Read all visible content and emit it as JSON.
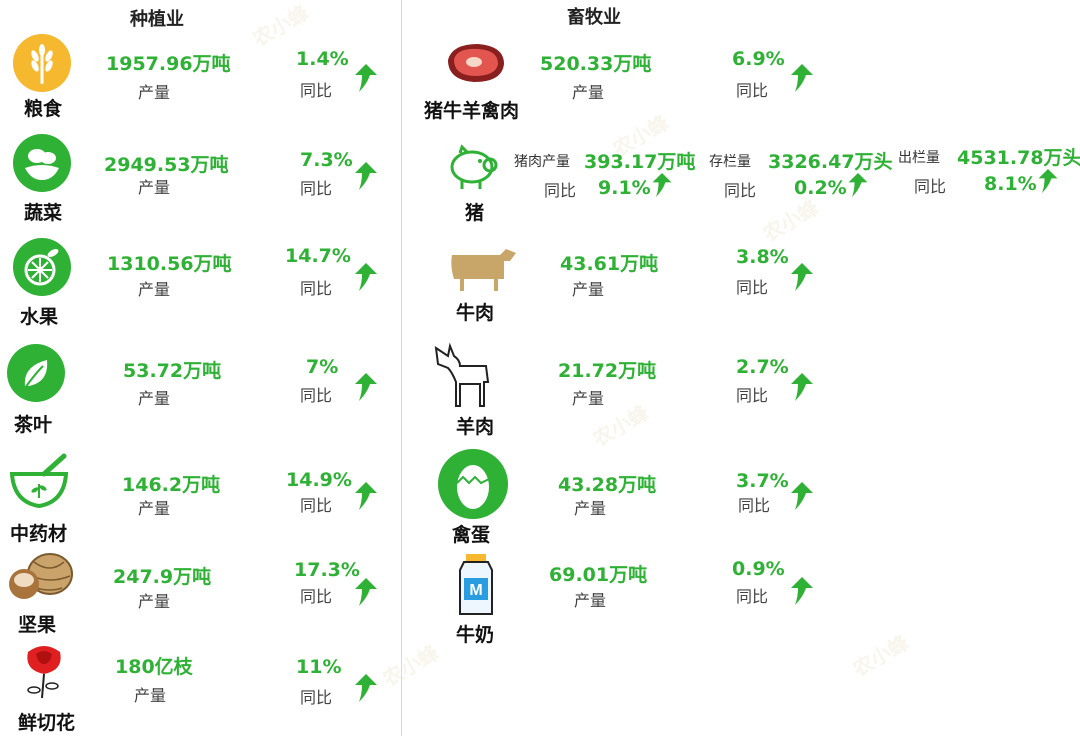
{
  "headers": {
    "planting": "种植业",
    "livestock": "畜牧业"
  },
  "common": {
    "yield_label": "产量",
    "yoy_label": "同比"
  },
  "watermark": "农小蜂",
  "planting": [
    {
      "name": "粮食",
      "value": "1957.96万吨",
      "pct": "1.4%",
      "icon": "wheat-icon"
    },
    {
      "name": "蔬菜",
      "value": "2949.53万吨",
      "pct": "7.3%",
      "icon": "vegetable-icon"
    },
    {
      "name": "水果",
      "value": "1310.56万吨",
      "pct": "14.7%",
      "icon": "citrus-icon"
    },
    {
      "name": "茶叶",
      "value": "53.72万吨",
      "pct": "7%",
      "icon": "tea-leaf-icon"
    },
    {
      "name": "中药材",
      "value": "146.2万吨",
      "pct": "14.9%",
      "icon": "mortar-icon"
    },
    {
      "name": "坚果",
      "value": "247.9万吨",
      "pct": "17.3%",
      "icon": "nut-icon"
    },
    {
      "name": "鲜切花",
      "value": "180亿枝",
      "pct": "11%",
      "icon": "rose-icon"
    }
  ],
  "livestock": [
    {
      "name": "猪牛羊禽肉",
      "value": "520.33万吨",
      "pct": "6.9%",
      "icon": "meat-icon"
    },
    {
      "name": "牛肉",
      "value": "43.61万吨",
      "pct": "3.8%",
      "icon": "cow-icon"
    },
    {
      "name": "羊肉",
      "value": "21.72万吨",
      "pct": "2.7%",
      "icon": "goat-icon"
    },
    {
      "name": "禽蛋",
      "value": "43.28万吨",
      "pct": "3.7%",
      "icon": "egg-icon"
    },
    {
      "name": "牛奶",
      "value": "69.01万吨",
      "pct": "0.9%",
      "icon": "milk-icon"
    }
  ],
  "pig": {
    "name": "猪",
    "icon": "pig-icon",
    "meat_label": "猪肉产量",
    "meat_value": "393.17万吨",
    "meat_pct": "9.1%",
    "stock_label": "存栏量",
    "stock_value": "3326.47万头",
    "stock_pct": "0.2%",
    "out_label": "出栏量",
    "out_value": "4531.78万头",
    "out_pct": "8.1%"
  },
  "colors": {
    "accent": "#2eb135",
    "icon_green": "#2eb135",
    "gold": "#f5b82e"
  }
}
